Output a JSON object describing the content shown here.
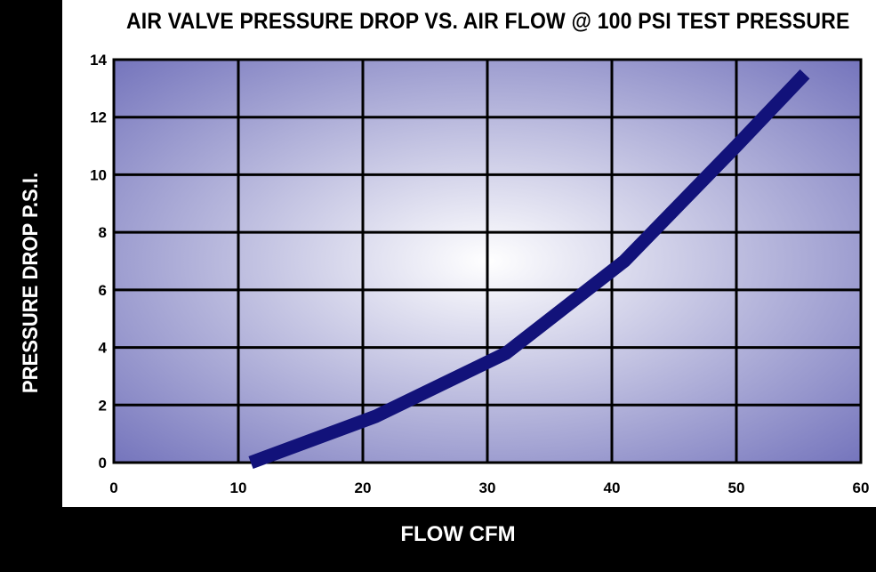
{
  "chart_data": {
    "type": "line",
    "title": "AIR VALVE PRESSURE DROP VS. AIR FLOW @ 100 PSI TEST PRESSURE",
    "xlabel": "FLOW CFM",
    "ylabel": "PRESSURE DROP P.S.I.",
    "xlim": [
      0,
      60
    ],
    "ylim": [
      0,
      14
    ],
    "xticks": [
      0,
      10,
      20,
      30,
      40,
      50,
      60
    ],
    "yticks": [
      0,
      2,
      4,
      6,
      8,
      10,
      12,
      14
    ],
    "grid": true,
    "series": [
      {
        "color": "#12127a",
        "x": [
          11,
          21,
          31.5,
          41,
          50,
          55.5
        ],
        "y": [
          0,
          1.6,
          3.8,
          7,
          11,
          13.5
        ]
      }
    ]
  },
  "colors": {
    "plot_center": "#ffffff",
    "plot_edge": "#7272bb",
    "line": "#12127a",
    "grid": "#000000",
    "band": "#000000"
  }
}
